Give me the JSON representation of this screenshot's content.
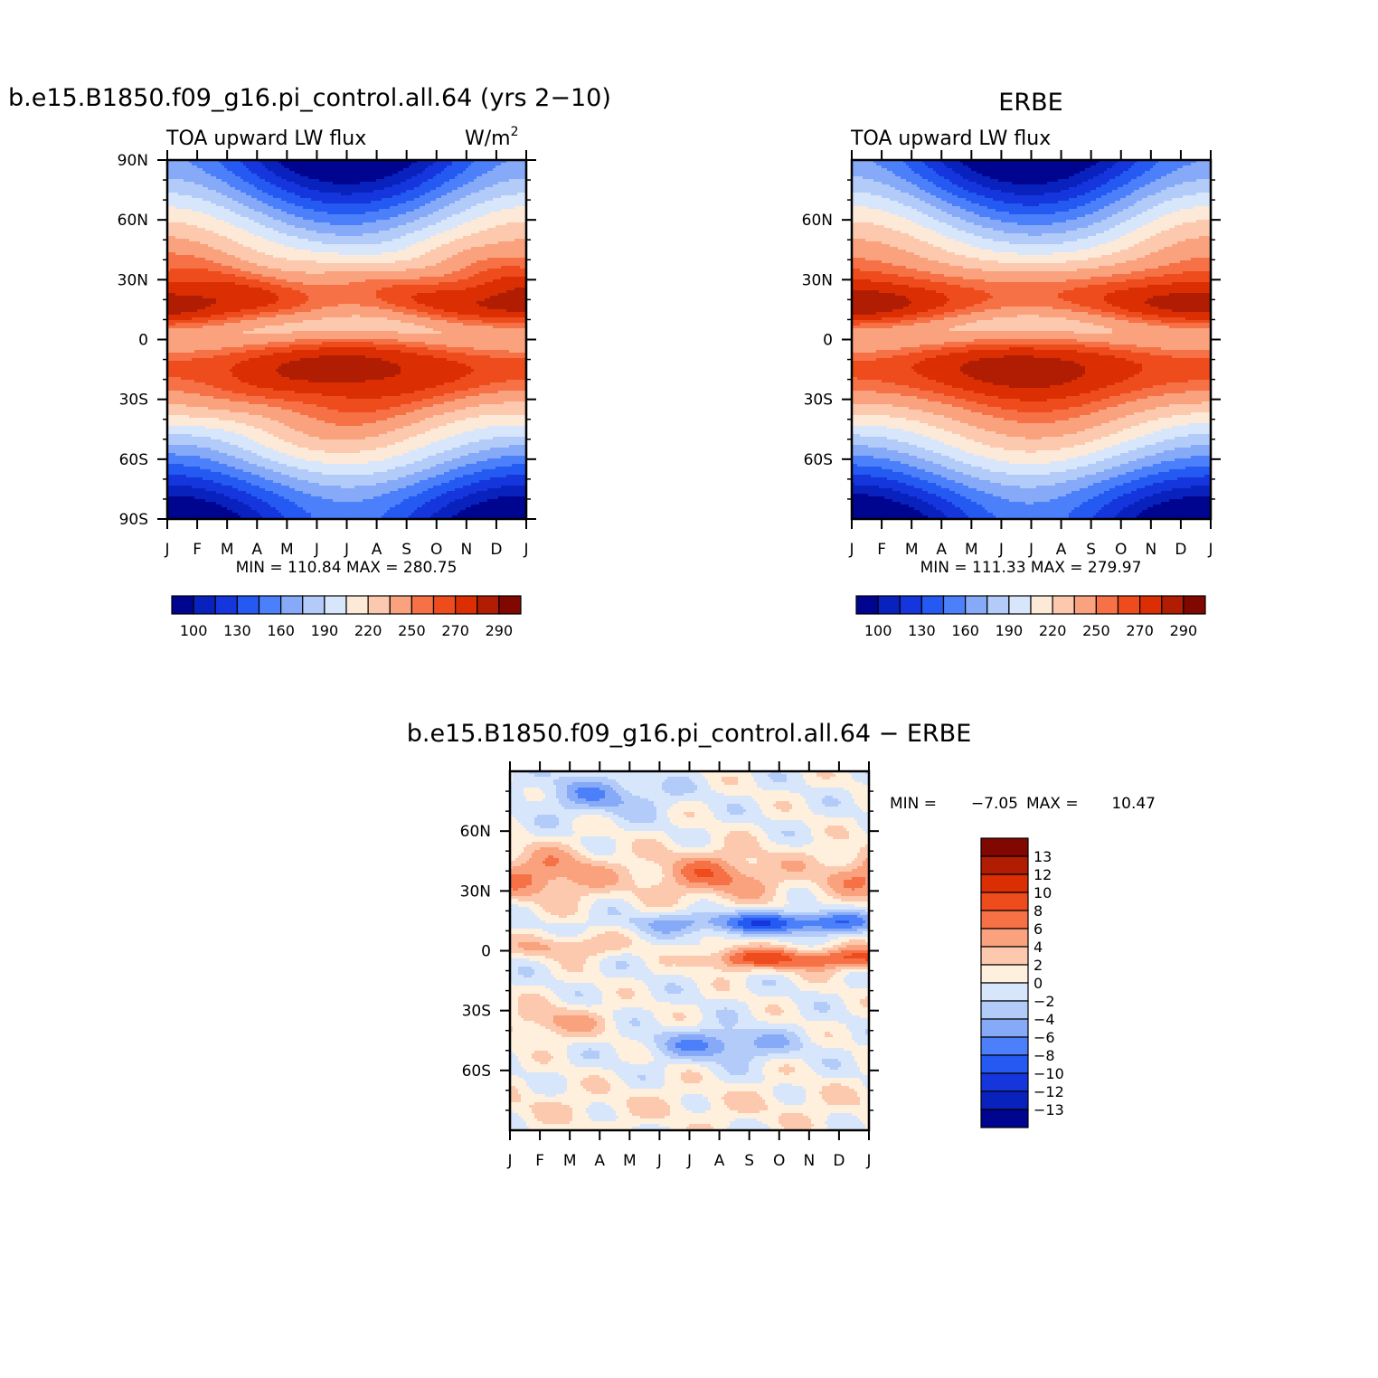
{
  "months": [
    "J",
    "F",
    "M",
    "A",
    "M",
    "J",
    "J",
    "A",
    "S",
    "O",
    "N",
    "D",
    "J"
  ],
  "chart_data": [
    {
      "type": "heatmap",
      "title": "b.e15.B1850.f09_g16.pi_control.all.64 (yrs 2−10)",
      "left_string": "TOA upward LW flux",
      "right_string": "W/m",
      "right_sup": "2",
      "stats": "MIN = 110.84 MAX = 280.75",
      "ylabels": [
        "90N",
        "60N",
        "30N",
        "0",
        "30S",
        "60S",
        "90S"
      ],
      "yvals": [
        90,
        60,
        30,
        0,
        -30,
        -60,
        -90
      ],
      "ylim": [
        -90,
        90
      ],
      "palette": [
        "#000590",
        "#0a22bd",
        "#1436dc",
        "#2459f2",
        "#4c80fa",
        "#86aaf8",
        "#b2cbf8",
        "#d7e6fb",
        "#fde9d8",
        "#fcc9ae",
        "#f9a27d",
        "#f67145",
        "#ee4c1d",
        "#db2f03",
        "#b01d02",
        "#810800"
      ],
      "cb_labels": [
        "100",
        "130",
        "160",
        "190",
        "220",
        "250",
        "270",
        "290"
      ],
      "field": "model"
    },
    {
      "type": "heatmap",
      "title": "ERBE",
      "left_string": "TOA upward LW flux",
      "stats": "MIN = 111.33 MAX = 279.97",
      "ylabels": [
        "60N",
        "30N",
        "0",
        "30S",
        "60S"
      ],
      "yvals": [
        60,
        30,
        0,
        -30,
        -60
      ],
      "ylim": [
        -90,
        90
      ],
      "cb_labels": [
        "100",
        "130",
        "160",
        "190",
        "220",
        "250",
        "270",
        "290"
      ],
      "field": "obs"
    },
    {
      "type": "heatmap",
      "title": "b.e15.B1850.f09_g16.pi_control.all.64 − ERBE",
      "stats_min_label": "MIN =",
      "stats_min": "−7.05",
      "stats_max_label": "MAX =",
      "stats_max": "10.47",
      "ylabels": [
        "60N",
        "30N",
        "0",
        "30S",
        "60S"
      ],
      "yvals": [
        60,
        30,
        0,
        -30,
        -60
      ],
      "ylim": [
        -90,
        90
      ],
      "diff_palette": [
        "#000590",
        "#0a22bd",
        "#1436dc",
        "#2459f2",
        "#4c80fa",
        "#86aaf8",
        "#b2cbf8",
        "#d7e6fb",
        "#fef0dc",
        "#fcc9ae",
        "#f9a27d",
        "#f67145",
        "#ee4c1d",
        "#db2f03",
        "#b01d02",
        "#810800"
      ],
      "cb_labels": [
        "13",
        "12",
        "10",
        "8",
        "6",
        "4",
        "2",
        "0",
        "−2",
        "−4",
        "−6",
        "−8",
        "−10",
        "−12",
        "−13"
      ],
      "field": "diff"
    }
  ]
}
